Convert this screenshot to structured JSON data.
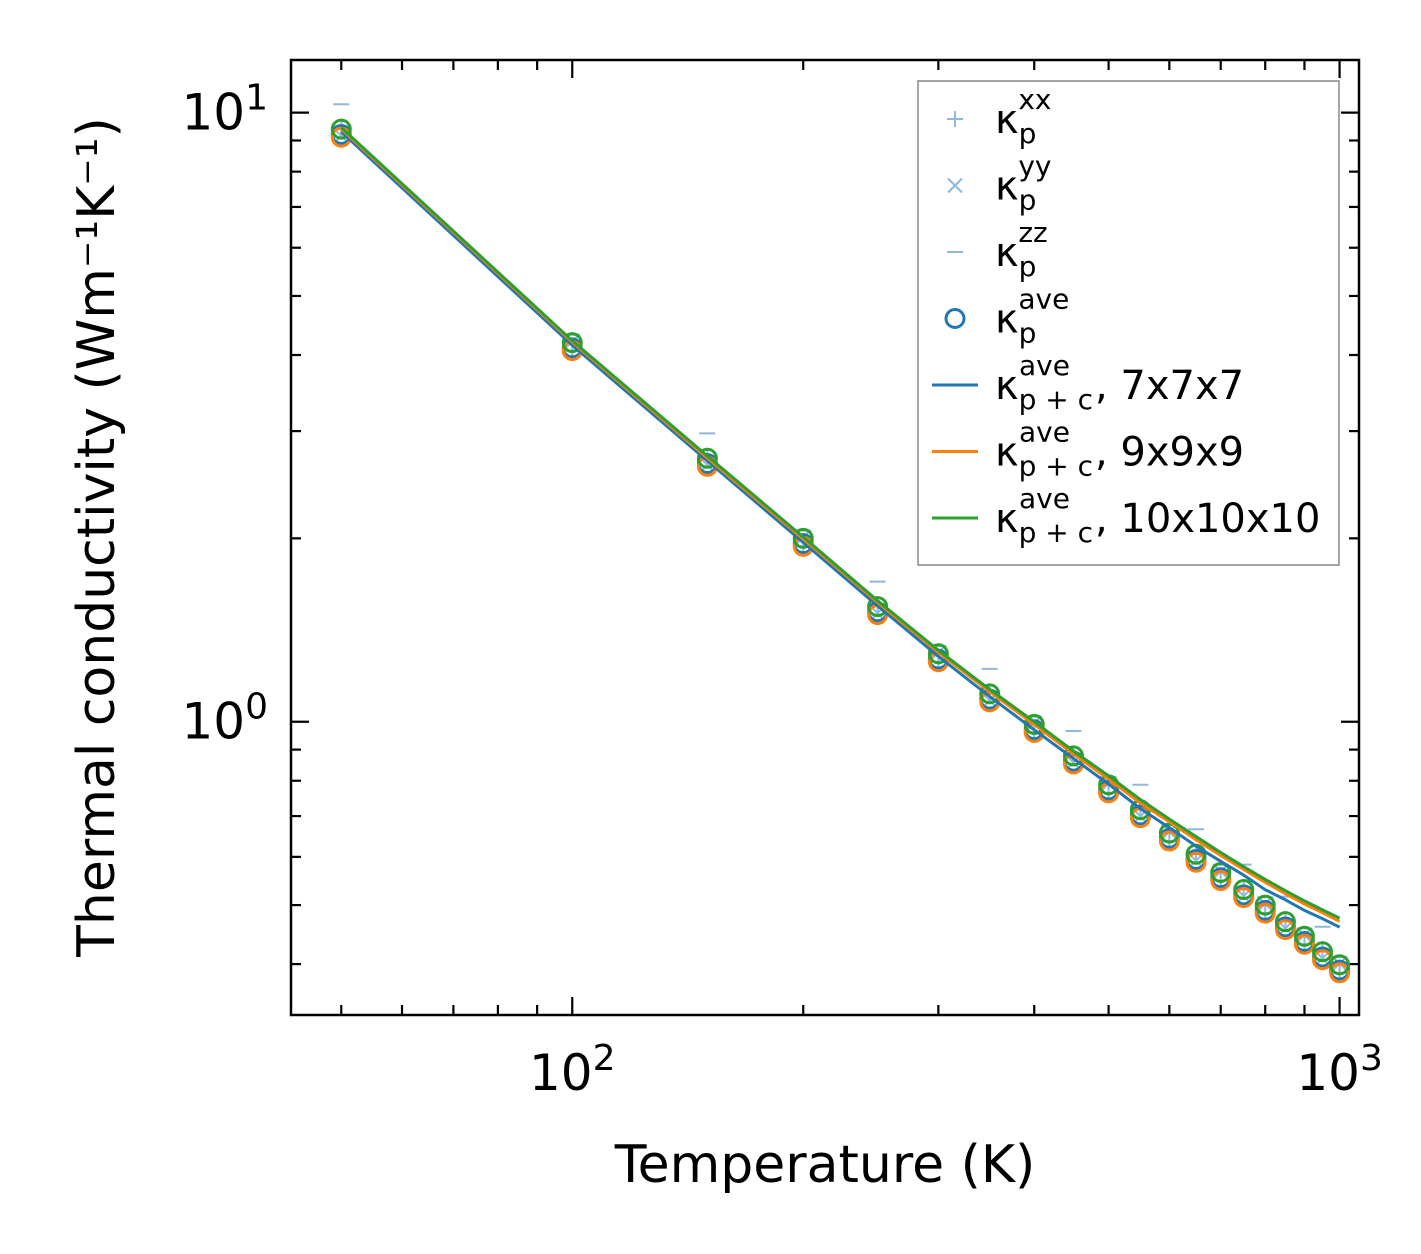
{
  "chart_data": {
    "type": "scatter",
    "xscale": "log",
    "yscale": "log",
    "xlim": [
      43,
      1060
    ],
    "ylim": [
      0.33,
      12.2
    ],
    "xlabel": "Temperature (K)",
    "ylabel": "Thermal conductivity (Wm⁻¹K⁻¹)",
    "x_tick_labels": [
      {
        "value": 100,
        "base": "10",
        "exp": "2"
      },
      {
        "value": 1000,
        "base": "10",
        "exp": "3"
      }
    ],
    "y_tick_labels": [
      {
        "value": 1,
        "base": "10",
        "exp": "0"
      },
      {
        "value": 10,
        "base": "10",
        "exp": "1"
      }
    ],
    "x": [
      50,
      100,
      150,
      200,
      250,
      300,
      350,
      400,
      450,
      500,
      550,
      600,
      650,
      700,
      750,
      800,
      850,
      900,
      950,
      1000
    ],
    "y_ave": [
      9.3,
      4.15,
      2.68,
      1.98,
      1.53,
      1.28,
      1.1,
      0.98,
      0.87,
      0.78,
      0.71,
      0.65,
      0.6,
      0.56,
      0.525,
      0.495,
      0.465,
      0.44,
      0.415,
      0.395
    ],
    "series": [
      {
        "name": "κ_p^xx",
        "kind": "marker",
        "marker": "plus",
        "color": "#90b8dc",
        "scale": 1.0
      },
      {
        "name": "κ_p^yy",
        "kind": "marker",
        "marker": "x",
        "color": "#90b8dc",
        "scale": 1.0
      },
      {
        "name": "κ_p^zz",
        "kind": "marker",
        "marker": "dash",
        "color": "#90b8dc",
        "scale": 1.0
      },
      {
        "name": "κ_p^ave, 7x7x7",
        "kind": "circle",
        "color": "#1f77b4",
        "scale": 0.99
      },
      {
        "name": "κ_p^ave, 9x9x9",
        "kind": "circle",
        "color": "#ff7f0e",
        "scale": 0.98
      },
      {
        "name": "κ_p^ave, 10x10x10",
        "kind": "circle",
        "color": "#2ca02c",
        "scale": 1.01
      },
      {
        "name": "κ_p+c^ave, 7x7x7",
        "kind": "line",
        "color": "#1f77b4",
        "values": [
          9.3,
          4.15,
          2.68,
          1.97,
          1.55,
          1.28,
          1.1,
          0.97,
          0.87,
          0.79,
          0.72,
          0.67,
          0.625,
          0.59,
          0.56,
          0.53,
          0.51,
          0.49,
          0.475,
          0.46
        ]
      },
      {
        "name": "κ_p+c^ave, 9x9x9",
        "kind": "line",
        "color": "#ff7f0e",
        "values": [
          9.4,
          4.2,
          2.71,
          1.995,
          1.57,
          1.3,
          1.12,
          0.99,
          0.885,
          0.805,
          0.735,
          0.685,
          0.64,
          0.603,
          0.572,
          0.545,
          0.522,
          0.502,
          0.486,
          0.47
        ]
      },
      {
        "name": "κ_p+c^ave, 10x10x10",
        "kind": "line",
        "color": "#2ca02c",
        "values": [
          9.45,
          4.22,
          2.73,
          2.01,
          1.58,
          1.31,
          1.13,
          1.0,
          0.895,
          0.815,
          0.745,
          0.692,
          0.648,
          0.61,
          0.578,
          0.551,
          0.528,
          0.508,
          0.491,
          0.476
        ]
      }
    ],
    "legend": {
      "placement": "top-right",
      "entries": [
        {
          "symbol": "plus",
          "color": "#90b8dc",
          "label": "κ",
          "sub": "p",
          "sup": "xx",
          "suffix": ""
        },
        {
          "symbol": "x",
          "color": "#90b8dc",
          "label": "κ",
          "sub": "p",
          "sup": "yy",
          "suffix": ""
        },
        {
          "symbol": "dash",
          "color": "#90b8dc",
          "label": "κ",
          "sub": "p",
          "sup": "zz",
          "suffix": ""
        },
        {
          "symbol": "circle",
          "color": "#1f77b4",
          "label": "κ",
          "sub": "p",
          "sup": "ave",
          "suffix": ""
        },
        {
          "symbol": "line",
          "color": "#1f77b4",
          "label": "κ",
          "sub": "p + c",
          "sup": "ave",
          "suffix": ", 7x7x7"
        },
        {
          "symbol": "line",
          "color": "#ff7f0e",
          "label": "κ",
          "sub": "p + c",
          "sup": "ave",
          "suffix": ", 9x9x9"
        },
        {
          "symbol": "line",
          "color": "#2ca02c",
          "label": "κ",
          "sub": "p + c",
          "sup": "ave",
          "suffix": ", 10x10x10"
        }
      ]
    }
  }
}
